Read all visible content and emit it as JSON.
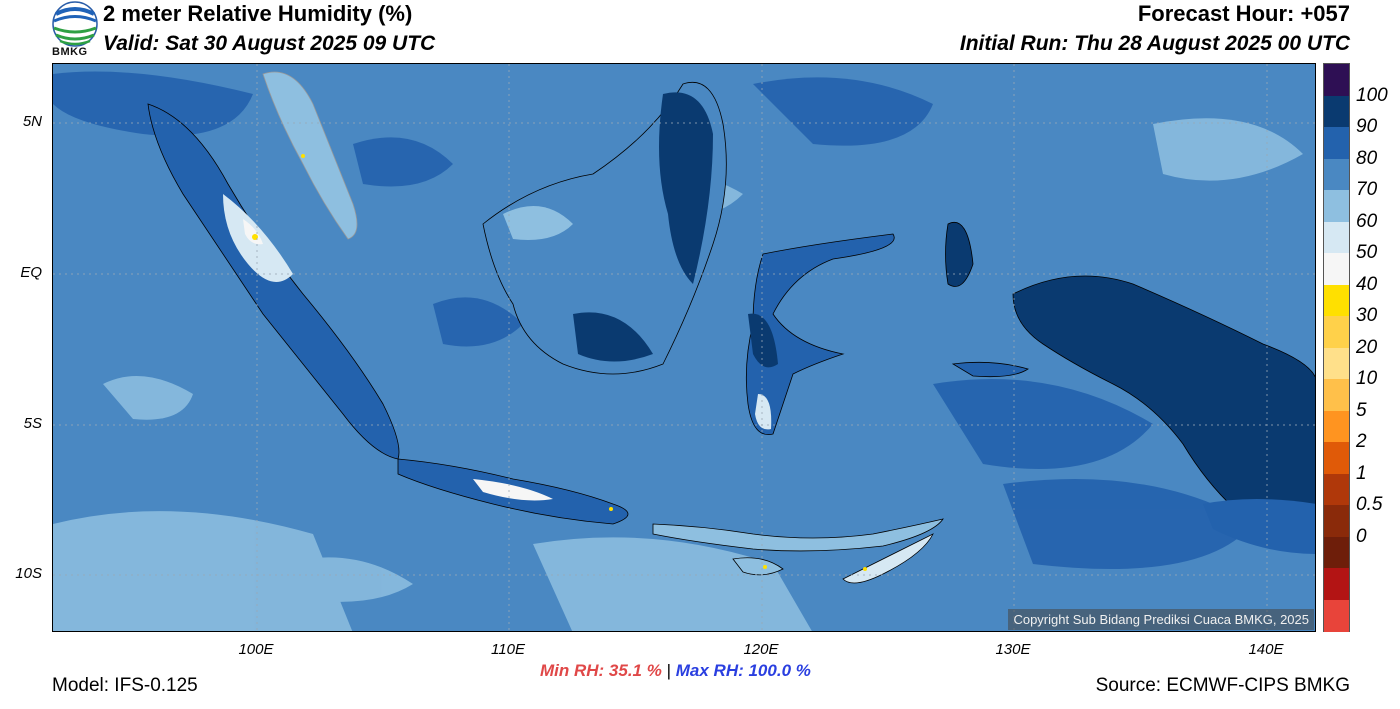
{
  "header": {
    "title": "2 meter Relative Humidity (%)",
    "valid": "Valid: Sat 30 August 2025 09 UTC",
    "forecast_hour": "Forecast Hour: +057",
    "initial_run": "Initial Run: Thu 28 August 2025 00 UTC",
    "logo_text": "BMKG"
  },
  "map": {
    "lat_labels": [
      "5N",
      "EQ",
      "5S",
      "10S"
    ],
    "lon_labels": [
      "100E",
      "110E",
      "120E",
      "130E",
      "140E"
    ],
    "ocean_color": "#4a88c2",
    "copyright": "Copyright Sub Bidang Prediksi Cuaca BMKG, 2025"
  },
  "colorbar": {
    "labels": [
      "100",
      "90",
      "80",
      "70",
      "60",
      "50",
      "40",
      "30",
      "20",
      "10",
      "5",
      "2",
      "1",
      "0.5",
      "0"
    ],
    "colors": [
      "#2e0f54",
      "#0a3a70",
      "#2362ad",
      "#4a88c2",
      "#8ebfe0",
      "#d6e8f3",
      "#f6f6f6",
      "#ffe000",
      "#ffd14a",
      "#ffe08a",
      "#ffc04a",
      "#ff9420",
      "#e05a08",
      "#b0380a",
      "#8a2a0a",
      "#6e1e0a",
      "#b31414",
      "#e8443a"
    ]
  },
  "footer": {
    "min_rh": "Min RH:  35.1 %",
    "separator": "|",
    "max_rh": "Max RH: 100.0 %",
    "model": "Model: IFS-0.125",
    "source": "Source: ECMWF-CIPS BMKG"
  }
}
